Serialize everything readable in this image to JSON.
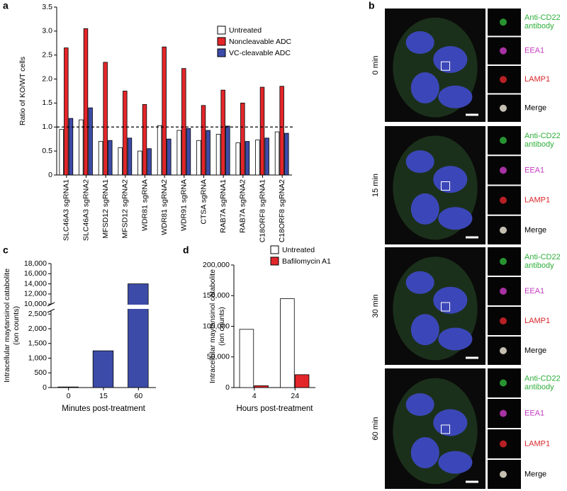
{
  "panel_labels": [
    "a",
    "b",
    "c",
    "d"
  ],
  "chart_data": [
    {
      "type": "bar",
      "ylabel": [
        "Ratio of KO/WT cells"
      ],
      "categories": [
        "SLC46A3 sgRNA1",
        "SLC46A3 sgRNA2",
        "MFSD12 sgRNA1",
        "MFSD12 sgRNA2",
        "WDR81 sgRNA",
        "WDR81 sgRNA2",
        "WDR91 sgRNA",
        "CTSA sgRNA",
        "RAB7A sgRNA1",
        "RAB7A sgRNA2",
        "C18ORF8 sgRNA1",
        "C18ORF8 sgRNA2"
      ],
      "series": [
        {
          "name": "Untreated",
          "color": "#ffffff",
          "values": [
            0.95,
            1.15,
            0.7,
            0.57,
            0.5,
            1.03,
            0.93,
            0.72,
            0.85,
            0.67,
            0.73,
            0.9
          ]
        },
        {
          "name": "Noncleavable ADC",
          "color": "#e3262a",
          "values": [
            2.65,
            3.05,
            2.35,
            1.75,
            1.47,
            2.67,
            2.22,
            1.45,
            1.77,
            1.5,
            1.83,
            1.85
          ]
        },
        {
          "name": "VC-cleavable ADC",
          "color": "#3d4ba8",
          "values": [
            1.18,
            1.4,
            0.72,
            0.77,
            0.55,
            0.75,
            0.97,
            0.93,
            1.02,
            0.7,
            0.77,
            0.87
          ]
        }
      ],
      "ylim": [
        0,
        3.5
      ],
      "yticks": [
        0,
        0.5,
        {
          "value": 1,
          "label": "1.0"
        },
        1.5,
        {
          "value": 2,
          "label": "2.0"
        },
        2.5,
        {
          "value": 3,
          "label": "3.0"
        },
        3.5
      ],
      "reference_line": 1,
      "legend": "top-right"
    },
    {
      "type": "bar",
      "ylabel": [
        "Intracellular maytansinol catabolite",
        "(ion counts)"
      ],
      "xlabel": "Minutes post-treatment",
      "categories": [
        "0",
        "15",
        "60"
      ],
      "values": [
        20,
        1250,
        14000
      ],
      "color": "#3d4ba8",
      "ylim": [
        0,
        18000
      ],
      "axis_break": [
        2650,
        9750
      ],
      "yticks": [
        0,
        500,
        {
          "value": 1000,
          "label": "1,000"
        },
        {
          "value": 1500,
          "label": "1,500"
        },
        {
          "value": 2000,
          "label": "2,000"
        },
        {
          "value": 2500,
          "label": "2,500"
        },
        {
          "value": 10000,
          "label": "10,000"
        },
        {
          "value": 12000,
          "label": "12,000"
        },
        {
          "value": 14000,
          "label": "14,000"
        },
        {
          "value": 16000,
          "label": "16,000"
        },
        {
          "value": 18000,
          "label": "18,000"
        }
      ]
    },
    {
      "type": "bar",
      "ylabel": [
        "Intracellular maytansinol catabolite",
        "(ion counts)"
      ],
      "xlabel": "Hours post-treatment",
      "categories": [
        "4",
        "24"
      ],
      "series": [
        {
          "name": "Untreated",
          "color": "#ffffff",
          "values": [
            95000,
            145000
          ]
        },
        {
          "name": "Bafilomycin A1",
          "color": "#e3262a",
          "values": [
            3000,
            21000
          ]
        }
      ],
      "ylim": [
        0,
        200000
      ],
      "yticks": [
        0,
        {
          "value": 50000,
          "label": "50,000"
        },
        {
          "value": 100000,
          "label": "100,000"
        },
        {
          "value": 150000,
          "label": "150,000"
        },
        {
          "value": 200000,
          "label": "200,000"
        }
      ],
      "legend": "top"
    }
  ],
  "micrographs": {
    "rows": [
      "0 min",
      "15 min",
      "30 min",
      "60 min"
    ],
    "channels": [
      {
        "label": [
          "Anti-CD22",
          "antibody"
        ],
        "color": "#2fae3a"
      },
      {
        "label": [
          "EEA1"
        ],
        "color": "#c43bc0"
      },
      {
        "label": [
          "LAMP1"
        ],
        "color": "#d7262b"
      },
      {
        "label": [
          "Merge"
        ],
        "color": "#000000"
      }
    ]
  }
}
